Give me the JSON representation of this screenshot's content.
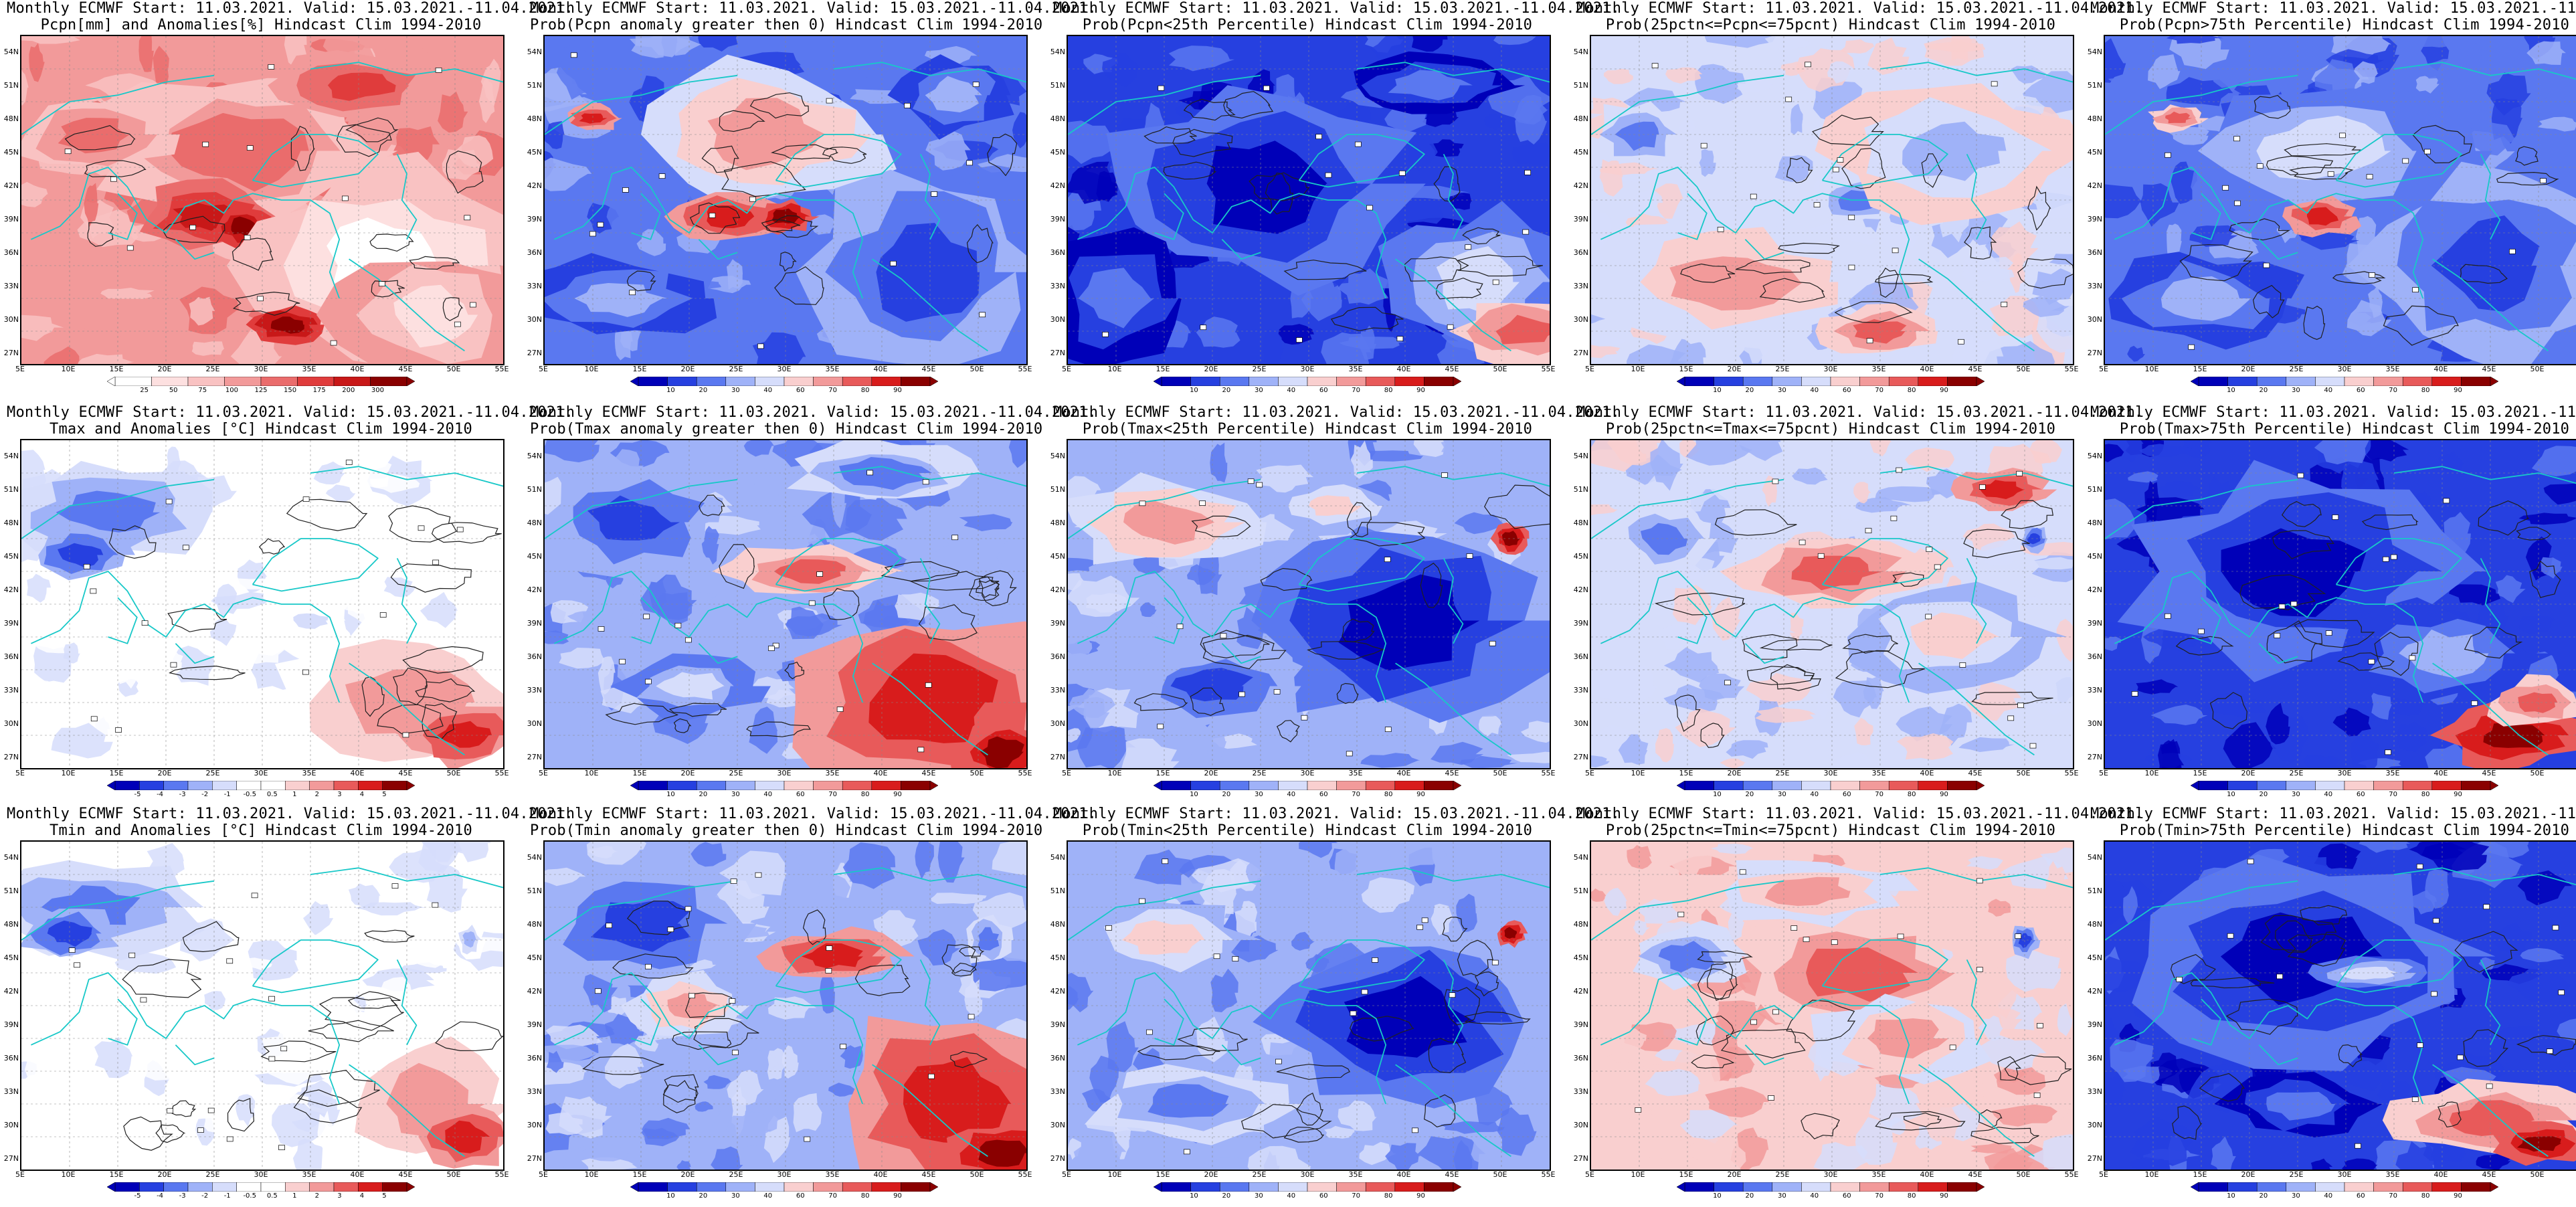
{
  "colors": {
    "deep_blue": "#0000b8",
    "blue": "#2640e0",
    "mid_blue": "#5a78f0",
    "light_blue": "#9fb2f8",
    "pale_blue": "#d6ddfb",
    "white": "#ffffff",
    "pale_red": "#f9cfcf",
    "light_red": "#f29a9a",
    "mid_red": "#e85a5a",
    "red": "#d81c1c",
    "deep_red": "#8a0000",
    "coast": "#18c8c8",
    "contour": "#202020",
    "prec_scale": [
      "#ffffff",
      "#fde0e0",
      "#f9c2c2",
      "#f29a9a",
      "#ea6c6c",
      "#e03c3c",
      "#c81818",
      "#8a0000"
    ],
    "prob_scale": [
      "#0000b8",
      "#2640e0",
      "#5a78f0",
      "#9fb2f8",
      "#d6ddfb",
      "#f9cfcf",
      "#f29a9a",
      "#e85a5a",
      "#d81c1c",
      "#8a0000"
    ],
    "anom_scale": [
      "#0000b8",
      "#2640e0",
      "#5a78f0",
      "#9fb2f8",
      "#d6ddfb",
      "#ffffff",
      "#ffffff",
      "#f9cfcf",
      "#f29a9a",
      "#e85a5a",
      "#d81c1c",
      "#8a0000"
    ]
  },
  "header": "Monthly ECMWF Start: 11.03.2021. Valid: 15.03.2021.-11.04.2021.",
  "lat_labels": [
    "54N",
    "51N",
    "48N",
    "45N",
    "42N",
    "39N",
    "36N",
    "33N",
    "30N",
    "27N"
  ],
  "lon_labels": [
    "5E",
    "10E",
    "15E",
    "20E",
    "25E",
    "30E",
    "35E",
    "40E",
    "45E",
    "50E",
    "55E"
  ],
  "colorbars": {
    "precip": [
      "25",
      "50",
      "75",
      "100",
      "125",
      "150",
      "175",
      "200",
      "300"
    ],
    "prob": [
      "10",
      "20",
      "30",
      "40",
      "60",
      "70",
      "80",
      "90"
    ],
    "temp_anom": [
      "-5",
      "-4",
      "-3",
      "-2",
      "-1",
      "-0.5",
      "0.5",
      "1",
      "2",
      "3",
      "4",
      "5"
    ]
  },
  "panels": [
    {
      "title2": "Pcpn[mm] and Anomalies[%] Hindcast Clim 1994-2010",
      "scale": "precip",
      "field": "precip"
    },
    {
      "title2": "Prob(Pcpn anomaly greater then 0) Hindcast Clim 1994-2010",
      "scale": "prob",
      "field": "pcp_gt0"
    },
    {
      "title2": "Prob(Pcpn<25th Percentile) Hindcast Clim 1994-2010",
      "scale": "prob",
      "field": "pcp_lt25"
    },
    {
      "title2": "Prob(25pctn<=Pcpn<=75pcnt) Hindcast Clim 1994-2010",
      "scale": "prob",
      "field": "pcp_mid"
    },
    {
      "title2": "Prob(Pcpn>75th Percentile) Hindcast Clim 1994-2010",
      "scale": "prob",
      "field": "pcp_gt75"
    },
    {
      "title2": "Tmax and Anomalies [°C] Hindcast Clim 1994-2010",
      "scale": "temp_anom",
      "field": "tmax"
    },
    {
      "title2": "Prob(Tmax anomaly greater then 0) Hindcast Clim 1994-2010",
      "scale": "prob",
      "field": "tmax_gt0"
    },
    {
      "title2": "Prob(Tmax<25th Percentile) Hindcast Clim 1994-2010",
      "scale": "prob",
      "field": "tmax_lt25"
    },
    {
      "title2": "Prob(25pctn<=Tmax<=75pcnt) Hindcast Clim 1994-2010",
      "scale": "prob",
      "field": "tmax_mid"
    },
    {
      "title2": "Prob(Tmax>75th Percentile) Hindcast Clim 1994-2010",
      "scale": "prob",
      "field": "tmax_gt75"
    },
    {
      "title2": "Tmin and Anomalies [°C] Hindcast Clim 1994-2010",
      "scale": "temp_anom",
      "field": "tmin"
    },
    {
      "title2": "Prob(Tmin anomaly greater then 0) Hindcast Clim 1994-2010",
      "scale": "prob",
      "field": "tmin_gt0"
    },
    {
      "title2": "Prob(Tmin<25th Percentile) Hindcast Clim 1994-2010",
      "scale": "prob",
      "field": "tmin_lt25"
    },
    {
      "title2": "Prob(25pctn<=Tmin<=75pcnt) Hindcast Clim 1994-2010",
      "scale": "prob",
      "field": "tmin_mid"
    },
    {
      "title2": "Prob(Tmin>75th Percentile) Hindcast Clim 1994-2010",
      "scale": "prob",
      "field": "tmin_gt75"
    }
  ]
}
